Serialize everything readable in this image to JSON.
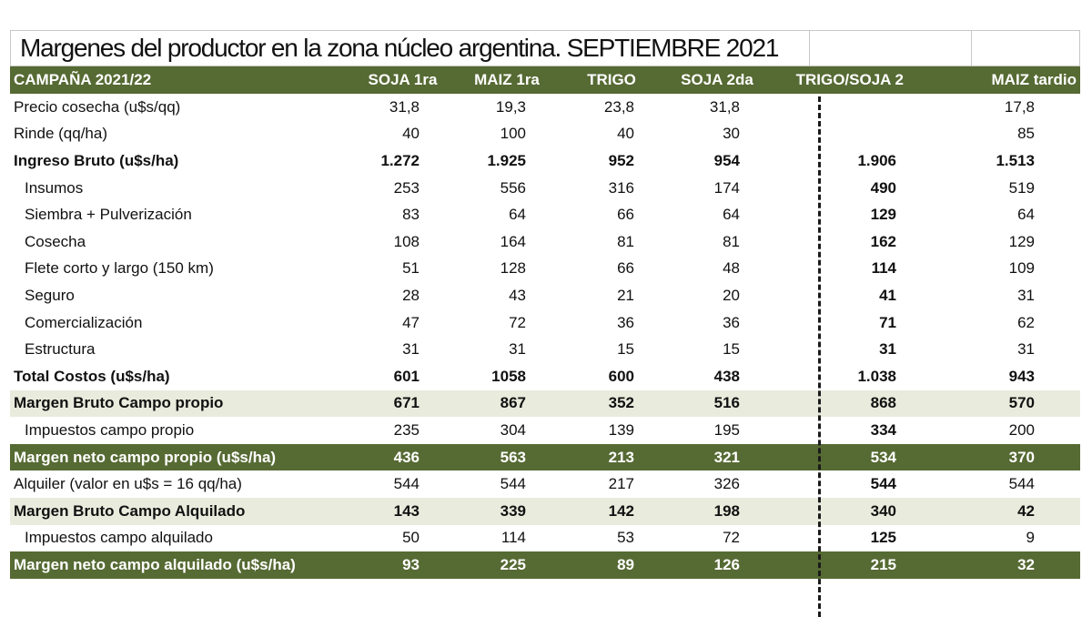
{
  "title": "Margenes del productor en la zona núcleo argentina. SEPTIEMBRE 2021",
  "header": {
    "label": "CAMPAÑA 2021/22",
    "columns": [
      "SOJA 1ra",
      "MAIZ 1ra",
      "TRIGO",
      "SOJA 2da",
      "TRIGO/SOJA 2",
      "MAIZ tardio"
    ]
  },
  "rows": [
    {
      "label": "Precio cosecha (u$s/qq)",
      "values": [
        "31,8",
        "19,3",
        "23,8",
        "31,8",
        "",
        "17,8"
      ]
    },
    {
      "label": "Rinde (qq/ha)",
      "values": [
        "40",
        "100",
        "40",
        "30",
        "",
        "85"
      ]
    },
    {
      "label": "Ingreso Bruto (u$s/ha)",
      "values": [
        "1.272",
        "1.925",
        "952",
        "954",
        "1.906",
        "1.513"
      ]
    },
    {
      "label": "Insumos",
      "values": [
        "253",
        "556",
        "316",
        "174",
        "490",
        "519"
      ]
    },
    {
      "label": "Siembra + Pulverización",
      "values": [
        "83",
        "64",
        "66",
        "64",
        "129",
        "64"
      ]
    },
    {
      "label": "Cosecha",
      "values": [
        "108",
        "164",
        "81",
        "81",
        "162",
        "129"
      ]
    },
    {
      "label": "Flete corto y largo (150 km)",
      "values": [
        "51",
        "128",
        "66",
        "48",
        "114",
        "109"
      ]
    },
    {
      "label": "Seguro",
      "values": [
        "28",
        "43",
        "21",
        "20",
        "41",
        "31"
      ]
    },
    {
      "label": "Comercialización",
      "values": [
        "47",
        "72",
        "36",
        "36",
        "71",
        "62"
      ]
    },
    {
      "label": "Estructura",
      "values": [
        "31",
        "31",
        "15",
        "15",
        "31",
        "31"
      ]
    },
    {
      "label": "Total Costos (u$s/ha)",
      "values": [
        "601",
        "1058",
        "600",
        "438",
        "1.038",
        "943"
      ]
    },
    {
      "label": "Margen Bruto Campo propio",
      "values": [
        "671",
        "867",
        "352",
        "516",
        "868",
        "570"
      ]
    },
    {
      "label": "Impuestos campo propio",
      "values": [
        "235",
        "304",
        "139",
        "195",
        "334",
        "200"
      ]
    },
    {
      "label": "Margen neto campo propio (u$s/ha)",
      "values": [
        "436",
        "563",
        "213",
        "321",
        "534",
        "370"
      ]
    },
    {
      "label": "Alquiler (valor en u$s = 16 qq/ha)",
      "values": [
        "544",
        "544",
        "217",
        "326",
        "544",
        "544"
      ]
    },
    {
      "label": "Margen Bruto Campo Alquilado",
      "values": [
        "143",
        "339",
        "142",
        "198",
        "340",
        "42"
      ]
    },
    {
      "label": "Impuestos campo alquilado",
      "values": [
        "50",
        "114",
        "53",
        "72",
        "125",
        "9"
      ]
    },
    {
      "label": "Margen neto campo alquilado (u$s/ha)",
      "values": [
        "93",
        "225",
        "89",
        "126",
        "215",
        "32"
      ]
    }
  ],
  "colors": {
    "header_green": "#566a33",
    "light_band": "#e9ecdd"
  }
}
